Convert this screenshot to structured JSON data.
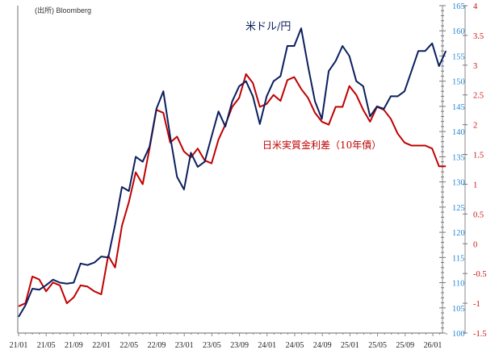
{
  "chart_data": {
    "type": "line",
    "source": "(出所) Bloomberg",
    "x_tick_labels": [
      "21/01",
      "21/05",
      "21/09",
      "22/01",
      "22/05",
      "22/09",
      "23/01",
      "23/05",
      "23/09",
      "24/01",
      "24/05",
      "24/09",
      "25/01",
      "25/05",
      "25/09",
      "26/01"
    ],
    "left_axis": {
      "ylim": [
        100,
        165
      ],
      "ticks": [
        100,
        105,
        110,
        115,
        120,
        125,
        130,
        135,
        140,
        145,
        150,
        155,
        160,
        165
      ],
      "color": "#2a86d0"
    },
    "right_axis": {
      "ylim": [
        -1.5,
        4
      ],
      "ticks": [
        -1.5,
        -1,
        -0.5,
        0,
        0.5,
        1,
        1.5,
        2,
        2.5,
        3,
        3.5,
        4
      ],
      "color": "#d01010"
    },
    "x_months": [
      "21/01",
      "21/02",
      "21/03",
      "21/04",
      "21/05",
      "21/06",
      "21/07",
      "21/08",
      "21/09",
      "21/10",
      "21/11",
      "21/12",
      "22/01",
      "22/02",
      "22/03",
      "22/04",
      "22/05",
      "22/06",
      "22/07",
      "22/08",
      "22/09",
      "22/10",
      "22/11",
      "22/12",
      "23/01",
      "23/02",
      "23/03",
      "23/04",
      "23/05",
      "23/06",
      "23/07",
      "23/08",
      "23/09",
      "23/10",
      "23/11",
      "23/12",
      "24/01",
      "24/02",
      "24/03",
      "24/04",
      "24/05",
      "24/06",
      "24/07",
      "24/08",
      "24/09",
      "24/10",
      "24/11",
      "24/12",
      "25/01",
      "25/02",
      "25/03",
      "25/04",
      "25/05",
      "25/06",
      "25/07",
      "25/08",
      "25/09",
      "25/10",
      "25/11",
      "25/12",
      "26/01",
      "26/02",
      "26/03"
    ],
    "series": [
      {
        "name": "米ドル/円",
        "axis": "left",
        "color": "#0b1f5e",
        "values": [
          103.2,
          105.5,
          108.8,
          108.6,
          109.5,
          110.6,
          110,
          109.8,
          110,
          113.8,
          113.5,
          114,
          115.2,
          115,
          121.5,
          129,
          128.2,
          135,
          134,
          137,
          144.5,
          148,
          139,
          131,
          128.5,
          135.8,
          133,
          134,
          139,
          144,
          141,
          146,
          149,
          150,
          147,
          141.5,
          147,
          150,
          151,
          157,
          157,
          160.5,
          153,
          146,
          142.5,
          152,
          154,
          157,
          155,
          150,
          149,
          143,
          145,
          144.5,
          147,
          147,
          148,
          152,
          156,
          156,
          157.5,
          153,
          156
        ]
      },
      {
        "name": "日米実質金利差（10年債）",
        "axis": "right",
        "color": "#c00000",
        "values": [
          -1.05,
          -1.0,
          -0.55,
          -0.6,
          -0.8,
          -0.65,
          -0.7,
          -1.0,
          -0.9,
          -0.7,
          -0.72,
          -0.8,
          -0.85,
          -0.2,
          -0.4,
          0.3,
          0.7,
          1.2,
          1.0,
          1.6,
          2.25,
          2.2,
          1.7,
          1.8,
          1.55,
          1.45,
          1.6,
          1.4,
          1.35,
          1.75,
          2.0,
          2.3,
          2.45,
          2.85,
          2.7,
          2.3,
          2.35,
          2.5,
          2.4,
          2.75,
          2.8,
          2.6,
          2.45,
          2.2,
          2.05,
          2.0,
          2.3,
          2.3,
          2.65,
          2.5,
          2.25,
          2.05,
          2.3,
          2.25,
          2.1,
          1.85,
          1.7,
          1.65,
          1.65,
          1.65,
          1.6,
          1.3,
          1.3
        ]
      }
    ],
    "annotations": [
      "米ドル/円",
      "日米実質金利差（10年債）"
    ],
    "grid": false
  }
}
